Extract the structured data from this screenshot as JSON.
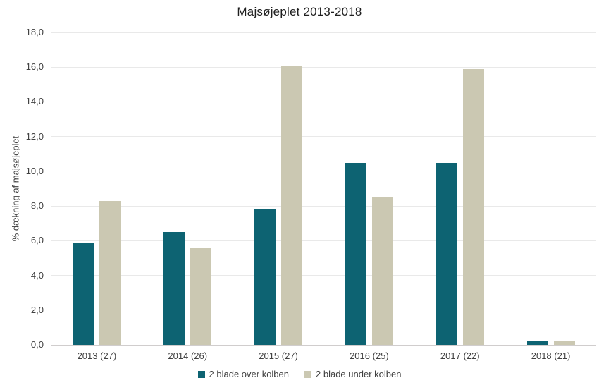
{
  "chart_data": {
    "type": "bar",
    "title": "Majsøjeplet 2013-2018",
    "ylabel": "% dækning af majsøjeplet",
    "xlabel": "",
    "categories": [
      "2013 (27)",
      "2014 (26)",
      "2015 (27)",
      "2016 (25)",
      "2017 (22)",
      "2018 (21)"
    ],
    "series": [
      {
        "name": "2 blade over kolben",
        "color": "#0d6372",
        "values": [
          5.9,
          6.5,
          7.8,
          10.5,
          10.5,
          0.2
        ]
      },
      {
        "name": "2 blade under kolben",
        "color": "#cbc8b2",
        "values": [
          8.3,
          5.6,
          16.1,
          8.5,
          15.9,
          0.2
        ]
      }
    ],
    "ylim": [
      0,
      18
    ],
    "ytick_step": 2,
    "ytick_labels": [
      "0,0",
      "2,0",
      "4,0",
      "6,0",
      "8,0",
      "10,0",
      "12,0",
      "14,0",
      "16,0",
      "18,0"
    ],
    "decimal_separator": ",",
    "grid": true,
    "legend_position": "bottom",
    "style": {
      "gridline_color": "#e9e9e9",
      "axis_line_color": "#d0cdcd",
      "tick_label_color": "#404040",
      "title_color": "#1f1f1f",
      "background": "#ffffff"
    }
  }
}
